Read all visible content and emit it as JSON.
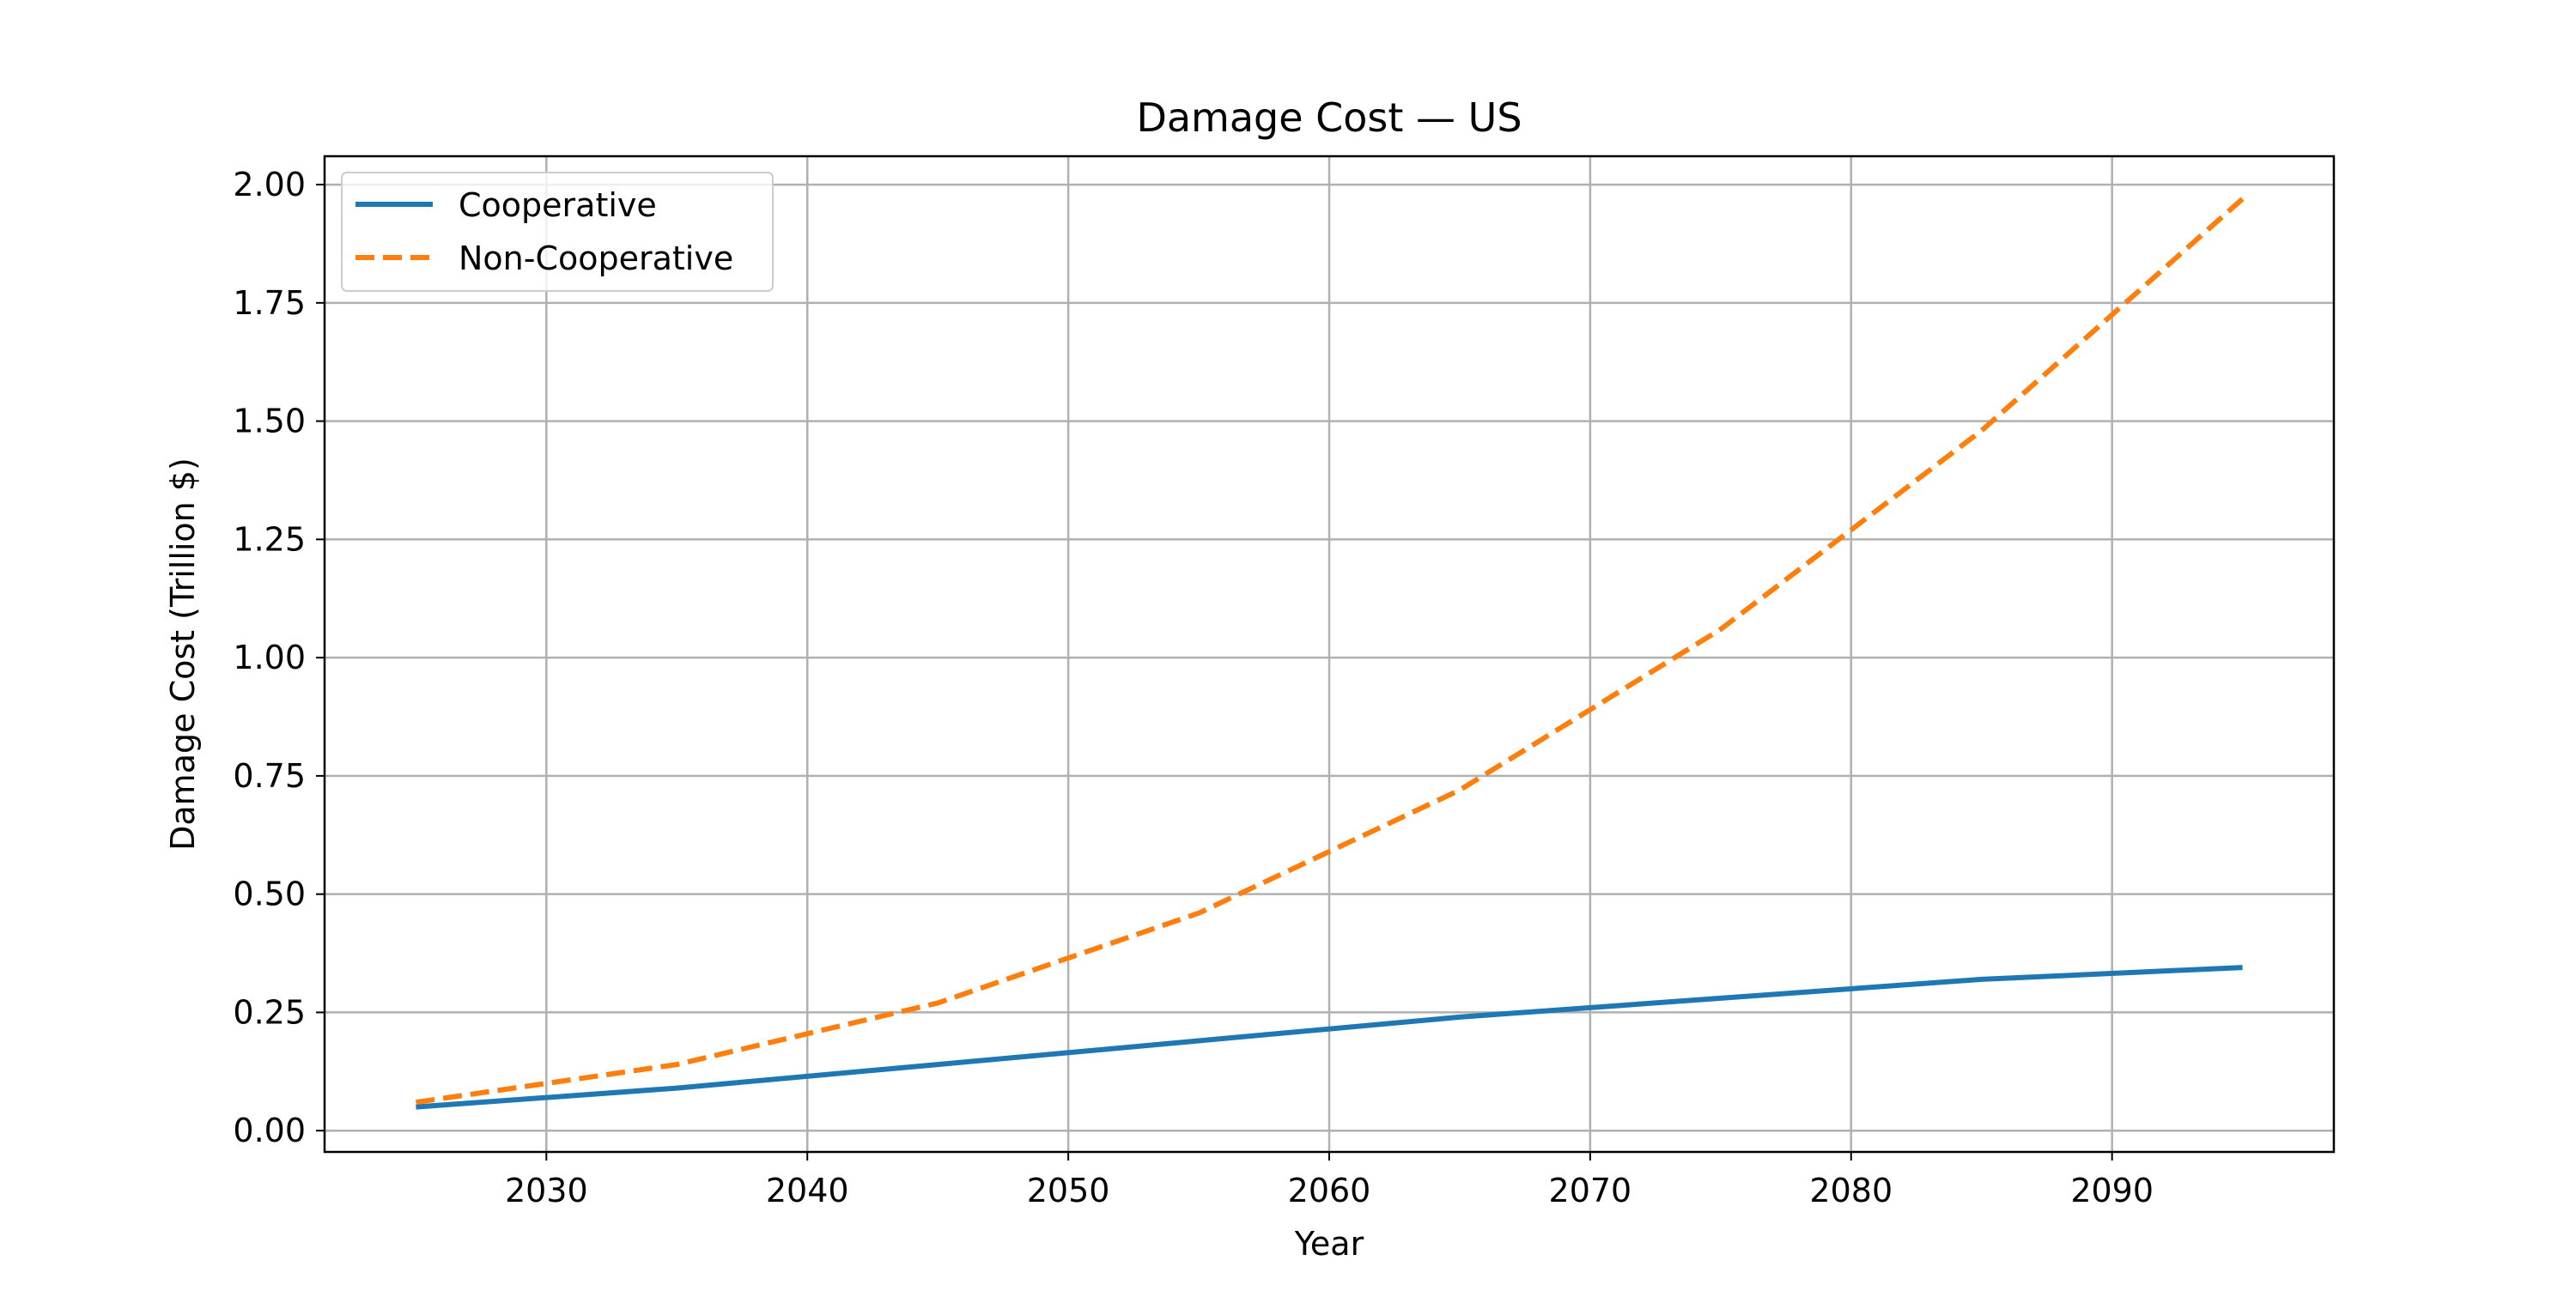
{
  "chart_data": {
    "type": "line",
    "title": "Damage Cost — US",
    "xlabel": "Year",
    "ylabel": "Damage Cost (Trillion $)",
    "xlim": [
      2021.5,
      2098.5
    ],
    "ylim": [
      -0.045,
      2.06
    ],
    "xticks": [
      2030,
      2040,
      2050,
      2060,
      2070,
      2080,
      2090
    ],
    "yticks": [
      0.0,
      0.25,
      0.5,
      0.75,
      1.0,
      1.25,
      1.5,
      1.75,
      2.0
    ],
    "ytick_labels": [
      "0.00",
      "0.25",
      "0.50",
      "0.75",
      "1.00",
      "1.25",
      "1.50",
      "1.75",
      "2.00"
    ],
    "grid": true,
    "legend_position": "top-left",
    "x": [
      2025,
      2035,
      2045,
      2055,
      2065,
      2075,
      2085,
      2095
    ],
    "series": [
      {
        "name": "Cooperative",
        "color": "#1f77b4",
        "style": "solid",
        "values": [
          0.05,
          0.09,
          0.14,
          0.19,
          0.24,
          0.28,
          0.32,
          0.345
        ]
      },
      {
        "name": "Non-Cooperative",
        "color": "#ff7f0e",
        "style": "dashed",
        "values": [
          0.06,
          0.14,
          0.27,
          0.46,
          0.72,
          1.06,
          1.48,
          1.97
        ]
      }
    ]
  }
}
